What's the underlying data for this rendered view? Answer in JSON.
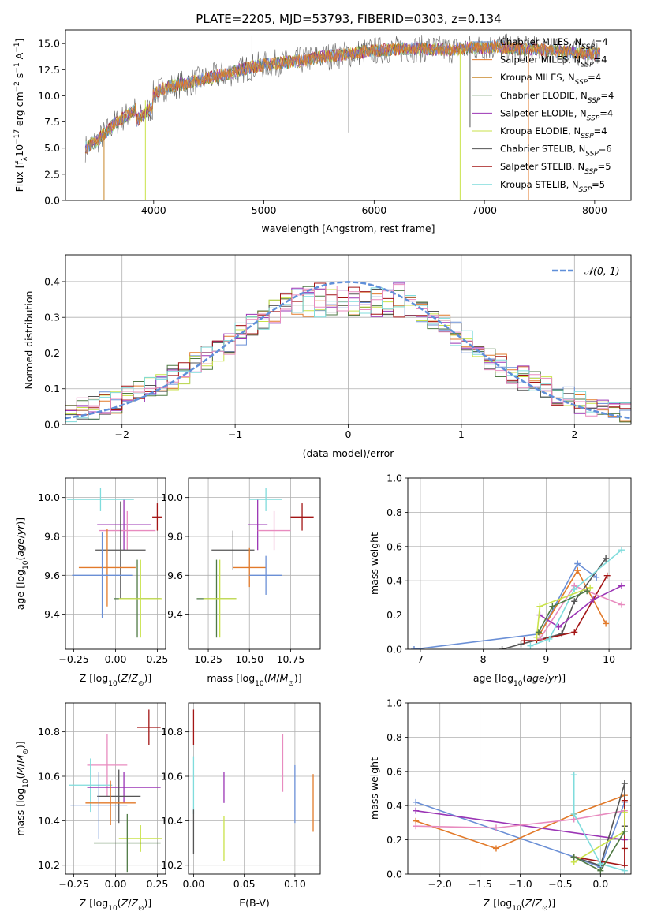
{
  "figure": {
    "title": "PLATE=2205, MJD=53793, FIBERID=0303, z=0.134"
  },
  "colors": {
    "chabrier_miles": "#6a8fd6",
    "salpeter_miles": "#e27a2a",
    "kroupa_miles": "#c8872a",
    "chabrier_elodie": "#4f7a44",
    "salpeter_elodie": "#9b35b5",
    "kroupa_elodie": "#c9e24a",
    "chabrier_stelib": "#555555",
    "salpeter_stelib": "#a31515",
    "kroupa_stelib": "#7fdcdc",
    "pink": "#e88bbf",
    "grid": "#b0b0b0",
    "normal_curve": "#5f8fd9"
  },
  "chart_data": [
    {
      "id": "spectrum",
      "type": "line",
      "xlabel": "wavelength [Angstrom, rest frame]",
      "ylabel": "Flux [f_λ10^-17 erg cm^-2 s^-1 A^-1]",
      "xlim": [
        3200,
        8330
      ],
      "ylim": [
        0,
        16.3
      ],
      "xticks": [
        4000,
        5000,
        6000,
        7000,
        8000
      ],
      "yticks": [
        0.0,
        2.5,
        5.0,
        7.5,
        10.0,
        12.5,
        15.0
      ],
      "ytick_labels": [
        "0.0",
        "2.5",
        "5.0",
        "7.5",
        "10.0",
        "12.5",
        "15.0"
      ],
      "legend_position": "right",
      "legend": [
        {
          "label": "Chabrier MILES, N",
          "sub": "SSP",
          "tail": "=4"
        },
        {
          "label": "Salpeter MILES, N",
          "sub": "SSP",
          "tail": "=4"
        },
        {
          "label": "Kroupa MILES, N",
          "sub": "SSP",
          "tail": "=4"
        },
        {
          "label": "Chabrier ELODIE, N",
          "sub": "SSP",
          "tail": "=4"
        },
        {
          "label": "Salpeter ELODIE, N",
          "sub": "SSP",
          "tail": "=4"
        },
        {
          "label": "Kroupa ELODIE, N",
          "sub": "SSP",
          "tail": "=4"
        },
        {
          "label": "Chabrier STELIB, N",
          "sub": "SSP",
          "tail": "=6"
        },
        {
          "label": "Salpeter STELIB, N",
          "sub": "SSP",
          "tail": "=5"
        },
        {
          "label": "Kroupa STELIB, N",
          "sub": "SSP",
          "tail": "=5"
        }
      ],
      "continuum": [
        [
          3380,
          5.0
        ],
        [
          3500,
          5.8
        ],
        [
          3650,
          7.4
        ],
        [
          3800,
          8.4
        ],
        [
          3950,
          9.8
        ],
        [
          4100,
          10.8
        ],
        [
          4300,
          11.2
        ],
        [
          4500,
          11.7
        ],
        [
          4700,
          12.2
        ],
        [
          4900,
          12.8
        ],
        [
          5100,
          13.1
        ],
        [
          5300,
          13.3
        ],
        [
          5500,
          13.7
        ],
        [
          5700,
          13.9
        ],
        [
          5900,
          14.2
        ],
        [
          6100,
          14.4
        ],
        [
          6300,
          14.5
        ],
        [
          6500,
          14.5
        ],
        [
          6700,
          14.4
        ],
        [
          6900,
          14.6
        ],
        [
          7100,
          14.7
        ],
        [
          7300,
          14.5
        ],
        [
          7500,
          14.4
        ],
        [
          7700,
          14.2
        ],
        [
          7900,
          14.1
        ],
        [
          8050,
          14.0
        ]
      ],
      "spikes": [
        {
          "x": 3550,
          "y": 0.0,
          "series": "kroupa_miles"
        },
        {
          "x": 3925,
          "y": 0.0,
          "series": "kroupa_elodie"
        },
        {
          "x": 6780,
          "y": 0.0,
          "series": "kroupa_elodie"
        },
        {
          "x": 7400,
          "y": 0.0,
          "series": "salpeter_miles"
        },
        {
          "x": 4892,
          "y": 15.8,
          "series": "chabrier_stelib"
        },
        {
          "x": 5770,
          "y": 6.5,
          "series": "chabrier_stelib"
        },
        {
          "x": 6870,
          "y": 7.0,
          "series": "chabrier_stelib"
        }
      ]
    },
    {
      "id": "residuals",
      "type": "histogram",
      "xlabel": "(data-model)/error",
      "ylabel": "Normed distribution",
      "xlim": [
        -2.5,
        2.5
      ],
      "ylim": [
        0,
        0.475
      ],
      "xticks": [
        -2,
        -1,
        0,
        1,
        2
      ],
      "xtick_labels": [
        "−2",
        "−1",
        "0",
        "1",
        "2"
      ],
      "yticks": [
        0.0,
        0.1,
        0.2,
        0.3,
        0.4
      ],
      "ytick_labels": [
        "0.0",
        "0.1",
        "0.2",
        "0.3",
        "0.4"
      ],
      "legend": {
        "label": "𝒩(0, 1)"
      },
      "legend_position": "top-right",
      "bin_width": 0.1
    },
    {
      "id": "age_Z",
      "type": "errorbar",
      "xlabel": "Z [log10(Z/Z⊙)]",
      "ylabel": "age  [log10(age/yr)]",
      "xlim": [
        -0.3,
        0.3
      ],
      "ylim": [
        9.22,
        10.1
      ],
      "xticks": [
        -0.25,
        0.0,
        0.25
      ],
      "xtick_labels": [
        "−0.25",
        "0.00",
        "0.25"
      ],
      "yticks": [
        9.4,
        9.6,
        9.8,
        10.0
      ],
      "ytick_labels": [
        "9.4",
        "9.6",
        "9.8",
        "10.0"
      ],
      "points": [
        {
          "x": 0.25,
          "y": 9.9,
          "xerr": 0.03,
          "yerr": 0.07,
          "c": "salpeter_stelib"
        },
        {
          "x": 0.05,
          "y": 9.86,
          "xerr": 0.16,
          "yerr": 0.13,
          "c": "salpeter_elodie"
        },
        {
          "x": 0.07,
          "y": 9.83,
          "xerr": 0.17,
          "yerr": 0.1,
          "c": "pink"
        },
        {
          "x": -0.09,
          "y": 9.99,
          "xerr": 0.2,
          "yerr": 0.06,
          "c": "kroupa_stelib"
        },
        {
          "x": 0.03,
          "y": 9.73,
          "xerr": 0.15,
          "yerr": 0.25,
          "c": "chabrier_stelib"
        },
        {
          "x": -0.05,
          "y": 9.64,
          "xerr": 0.17,
          "yerr": 0.2,
          "c": "salpeter_miles"
        },
        {
          "x": -0.08,
          "y": 9.6,
          "xerr": 0.18,
          "yerr": 0.22,
          "c": "chabrier_miles"
        },
        {
          "x": 0.13,
          "y": 9.48,
          "xerr": 0.14,
          "yerr": 0.2,
          "c": "chabrier_elodie"
        },
        {
          "x": 0.15,
          "y": 9.48,
          "xerr": 0.13,
          "yerr": 0.2,
          "c": "kroupa_elodie"
        }
      ]
    },
    {
      "id": "age_mass",
      "type": "errorbar",
      "xlabel": "mass [log10(M/M⊙)]",
      "ylabel": "",
      "xlim": [
        10.13,
        10.93
      ],
      "ylim": [
        9.22,
        10.1
      ],
      "xticks": [
        10.25,
        10.5,
        10.75
      ],
      "xtick_labels": [
        "10.25",
        "10.50",
        "10.75"
      ],
      "yticks": [
        9.4,
        9.6,
        9.8,
        10.0
      ],
      "ytick_labels": [
        "9.4",
        "9.6",
        "9.8",
        "10.0"
      ],
      "points": [
        {
          "x": 10.82,
          "y": 9.9,
          "xerr": 0.07,
          "yerr": 0.07,
          "c": "salpeter_stelib"
        },
        {
          "x": 10.55,
          "y": 9.86,
          "xerr": 0.06,
          "yerr": 0.13,
          "c": "salpeter_elodie"
        },
        {
          "x": 10.65,
          "y": 9.83,
          "xerr": 0.1,
          "yerr": 0.1,
          "c": "pink"
        },
        {
          "x": 10.6,
          "y": 9.99,
          "xerr": 0.1,
          "yerr": 0.06,
          "c": "kroupa_stelib"
        },
        {
          "x": 10.4,
          "y": 9.73,
          "xerr": 0.13,
          "yerr": 0.1,
          "c": "chabrier_stelib"
        },
        {
          "x": 10.5,
          "y": 9.64,
          "xerr": 0.1,
          "yerr": 0.1,
          "c": "salpeter_miles"
        },
        {
          "x": 10.6,
          "y": 9.6,
          "xerr": 0.1,
          "yerr": 0.1,
          "c": "chabrier_miles"
        },
        {
          "x": 10.3,
          "y": 9.48,
          "xerr": 0.12,
          "yerr": 0.2,
          "c": "chabrier_elodie"
        },
        {
          "x": 10.32,
          "y": 9.48,
          "xerr": 0.1,
          "yerr": 0.2,
          "c": "kroupa_elodie"
        }
      ]
    },
    {
      "id": "weight_age",
      "type": "line",
      "xlabel": "age  [log10(age/yr)]",
      "ylabel": "mass weight",
      "xlim": [
        6.8,
        10.35
      ],
      "ylim": [
        0,
        1.0
      ],
      "xticks": [
        7,
        8,
        9,
        10
      ],
      "xtick_labels": [
        "7",
        "8",
        "9",
        "10"
      ],
      "yticks": [
        0.0,
        0.2,
        0.4,
        0.6,
        0.8,
        1.0
      ],
      "ytick_labels": [
        "0.0",
        "0.2",
        "0.4",
        "0.6",
        "0.8",
        "1.0"
      ],
      "series": [
        {
          "c": "chabrier_miles",
          "x": [
            6.9,
            8.9,
            9.5,
            9.8
          ],
          "y": [
            0.0,
            0.09,
            0.5,
            0.42
          ]
        },
        {
          "c": "salpeter_miles",
          "x": [
            8.9,
            9.5,
            9.95
          ],
          "y": [
            0.09,
            0.46,
            0.15
          ]
        },
        {
          "c": "chabrier_stelib",
          "x": [
            8.3,
            8.6,
            9.25,
            9.45,
            9.95
          ],
          "y": [
            0.0,
            0.03,
            0.09,
            0.28,
            0.53
          ]
        },
        {
          "c": "salpeter_stelib",
          "x": [
            8.65,
            8.85,
            9.45,
            9.97
          ],
          "y": [
            0.05,
            0.05,
            0.1,
            0.43
          ]
        },
        {
          "c": "salpeter_elodie",
          "x": [
            8.9,
            9.2,
            9.75,
            10.2
          ],
          "y": [
            0.2,
            0.13,
            0.29,
            0.37
          ]
        },
        {
          "c": "pink",
          "x": [
            8.9,
            9.45,
            10.2
          ],
          "y": [
            0.06,
            0.37,
            0.26
          ]
        },
        {
          "c": "kroupa_stelib",
          "x": [
            8.75,
            9.05,
            9.45,
            10.2
          ],
          "y": [
            0.02,
            0.06,
            0.35,
            0.58
          ]
        },
        {
          "c": "kroupa_elodie",
          "x": [
            8.85,
            8.9,
            9.7
          ],
          "y": [
            0.07,
            0.25,
            0.36
          ]
        },
        {
          "c": "chabrier_elodie",
          "x": [
            8.88,
            9.1,
            9.65
          ],
          "y": [
            0.1,
            0.25,
            0.34
          ]
        }
      ]
    },
    {
      "id": "mass_Z",
      "type": "errorbar",
      "xlabel": "Z [log10(Z/Z⊙)]",
      "ylabel": "mass [log10(M/M⊙)]",
      "xlim": [
        -0.3,
        0.3
      ],
      "ylim": [
        10.16,
        10.93
      ],
      "xticks": [
        -0.25,
        0.0,
        0.25
      ],
      "xtick_labels": [
        "−0.25",
        "0.00",
        "0.25"
      ],
      "yticks": [
        10.2,
        10.4,
        10.6,
        10.8
      ],
      "ytick_labels": [
        "10.2",
        "10.4",
        "10.6",
        "10.8"
      ],
      "points": [
        {
          "x": 0.2,
          "y": 10.82,
          "xerr": 0.07,
          "yerr": 0.08,
          "c": "salpeter_stelib"
        },
        {
          "x": -0.05,
          "y": 10.65,
          "xerr": 0.12,
          "yerr": 0.14,
          "c": "pink"
        },
        {
          "x": -0.15,
          "y": 10.56,
          "xerr": 0.13,
          "yerr": 0.12,
          "c": "kroupa_stelib"
        },
        {
          "x": 0.05,
          "y": 10.55,
          "xerr": 0.22,
          "yerr": 0.07,
          "c": "salpeter_elodie"
        },
        {
          "x": 0.02,
          "y": 10.51,
          "xerr": 0.13,
          "yerr": 0.12,
          "c": "chabrier_stelib"
        },
        {
          "x": -0.03,
          "y": 10.48,
          "xerr": 0.15,
          "yerr": 0.1,
          "c": "salpeter_miles"
        },
        {
          "x": -0.1,
          "y": 10.47,
          "xerr": 0.17,
          "yerr": 0.15,
          "c": "chabrier_miles"
        },
        {
          "x": 0.15,
          "y": 10.32,
          "xerr": 0.13,
          "yerr": 0.06,
          "c": "kroupa_elodie"
        },
        {
          "x": 0.07,
          "y": 10.3,
          "xerr": 0.2,
          "yerr": 0.13,
          "c": "chabrier_elodie"
        }
      ]
    },
    {
      "id": "mass_ebv",
      "type": "errorbar",
      "xlabel": "E(B-V)",
      "ylabel": "",
      "xlim": [
        -0.005,
        0.125
      ],
      "ylim": [
        10.16,
        10.93
      ],
      "xticks": [
        0.0,
        0.05,
        0.1
      ],
      "xtick_labels": [
        "0.00",
        "0.05",
        "0.10"
      ],
      "yticks": [
        10.2,
        10.4,
        10.6,
        10.8
      ],
      "ytick_labels": [
        "10.2",
        "10.4",
        "10.6",
        "10.8"
      ],
      "points": [
        {
          "x": 0.0,
          "y": 10.82,
          "xerr": 0.0,
          "yerr": 0.08,
          "c": "salpeter_stelib"
        },
        {
          "x": 0.0,
          "y": 10.56,
          "xerr": 0.0,
          "yerr": 0.13,
          "c": "kroupa_stelib"
        },
        {
          "x": 0.0,
          "y": 10.35,
          "xerr": 0.0,
          "yerr": 0.1,
          "c": "chabrier_stelib"
        },
        {
          "x": 0.03,
          "y": 10.55,
          "xerr": 0.0,
          "yerr": 0.07,
          "c": "salpeter_elodie"
        },
        {
          "x": 0.03,
          "y": 10.32,
          "xerr": 0.0,
          "yerr": 0.1,
          "c": "kroupa_elodie"
        },
        {
          "x": 0.088,
          "y": 10.66,
          "xerr": 0.0,
          "yerr": 0.13,
          "c": "pink"
        },
        {
          "x": 0.1,
          "y": 10.52,
          "xerr": 0.0,
          "yerr": 0.13,
          "c": "chabrier_miles"
        },
        {
          "x": 0.118,
          "y": 10.48,
          "xerr": 0.0,
          "yerr": 0.13,
          "c": "salpeter_miles"
        }
      ]
    },
    {
      "id": "weight_Z",
      "type": "line",
      "xlabel": "Z [log10(Z/Z⊙)]",
      "ylabel": "mass weight",
      "xlim": [
        -2.4,
        0.38
      ],
      "ylim": [
        0,
        1.0
      ],
      "xticks": [
        -2.0,
        -1.5,
        -1.0,
        -0.5,
        0.0
      ],
      "xtick_labels": [
        "−2.0",
        "−1.5",
        "−1.0",
        "−0.5",
        "0.0"
      ],
      "yticks": [
        0.0,
        0.2,
        0.4,
        0.6,
        0.8,
        1.0
      ],
      "ytick_labels": [
        "0.0",
        "0.2",
        "0.4",
        "0.6",
        "0.8",
        "1.0"
      ],
      "series": [
        {
          "c": "chabrier_miles",
          "x": [
            -2.3,
            -0.33,
            0.0,
            0.3
          ],
          "y": [
            0.42,
            0.1,
            0.04,
            0.42
          ]
        },
        {
          "c": "salpeter_miles",
          "x": [
            -2.3,
            -1.3,
            -0.33,
            0.3
          ],
          "y": [
            0.31,
            0.15,
            0.35,
            0.46
          ]
        },
        {
          "c": "salpeter_elodie",
          "x": [
            -2.3,
            0.3
          ],
          "y": [
            0.37,
            0.2
          ]
        },
        {
          "c": "pink",
          "x": [
            -2.3,
            -1.3,
            -0.33,
            0.3
          ],
          "y": [
            0.28,
            0.27,
            0.32,
            0.37
          ]
        },
        {
          "c": "chabrier_stelib",
          "x": [
            -0.33,
            0.0,
            0.3,
            0.3
          ],
          "y": [
            0.1,
            0.05,
            0.53,
            0.28
          ]
        },
        {
          "c": "salpeter_stelib",
          "x": [
            -0.33,
            0.3,
            0.3,
            0.3
          ],
          "y": [
            0.1,
            0.05,
            0.43,
            0.15
          ]
        },
        {
          "c": "kroupa_stelib",
          "x": [
            -0.33,
            -0.33,
            0.0,
            0.3
          ],
          "y": [
            0.58,
            0.35,
            0.06,
            0.02
          ]
        },
        {
          "c": "kroupa_elodie",
          "x": [
            -0.33,
            0.3,
            0.3
          ],
          "y": [
            0.07,
            0.25,
            0.36
          ]
        },
        {
          "c": "chabrier_elodie",
          "x": [
            -0.33,
            0.0,
            0.3
          ],
          "y": [
            0.1,
            0.02,
            0.25
          ]
        }
      ]
    }
  ]
}
